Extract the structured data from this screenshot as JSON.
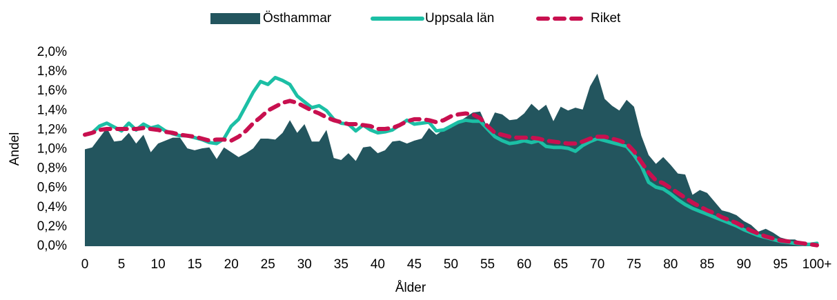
{
  "chart_data": {
    "type": "line",
    "xlabel": "Ålder",
    "ylabel": "Andel",
    "categories": [
      "0",
      null,
      null,
      null,
      null,
      "5",
      null,
      null,
      null,
      null,
      "10",
      null,
      null,
      null,
      null,
      "15",
      null,
      null,
      null,
      null,
      "20",
      null,
      null,
      null,
      null,
      "25",
      null,
      null,
      null,
      null,
      "30",
      null,
      null,
      null,
      null,
      "35",
      null,
      null,
      null,
      null,
      "40",
      null,
      null,
      null,
      null,
      "45",
      null,
      null,
      null,
      null,
      "50",
      null,
      null,
      null,
      null,
      "55",
      null,
      null,
      null,
      null,
      "60",
      null,
      null,
      null,
      null,
      "65",
      null,
      null,
      null,
      null,
      "70",
      null,
      null,
      null,
      null,
      "75",
      null,
      null,
      null,
      null,
      "80",
      null,
      null,
      null,
      null,
      "85",
      null,
      null,
      null,
      null,
      "90",
      null,
      null,
      null,
      null,
      "95",
      null,
      null,
      null,
      null,
      "100+"
    ],
    "ylim": [
      0,
      2.0
    ],
    "yticks": [
      {
        "value": 0,
        "label": "0,0%"
      },
      {
        "value": 0.2,
        "label": "0,2%"
      },
      {
        "value": 0.4,
        "label": "0,4%"
      },
      {
        "value": 0.6,
        "label": "0,6%"
      },
      {
        "value": 0.8,
        "label": "0,8%"
      },
      {
        "value": 1.0,
        "label": "1,0%"
      },
      {
        "value": 1.2,
        "label": "1,2%"
      },
      {
        "value": 1.4,
        "label": "1,4%"
      },
      {
        "value": 1.6,
        "label": "1,6%"
      },
      {
        "value": 1.8,
        "label": "1,8%"
      },
      {
        "value": 2.0,
        "label": "2,0%"
      }
    ],
    "grid": false,
    "legend": "top",
    "series": [
      {
        "name": "Östhammar",
        "kind": "area",
        "color": "#23555e",
        "values": [
          1.0,
          1.02,
          1.12,
          1.22,
          1.08,
          1.09,
          1.17,
          1.06,
          1.15,
          0.97,
          1.06,
          1.09,
          1.12,
          1.12,
          1.01,
          0.99,
          1.01,
          1.02,
          0.9,
          1.02,
          0.97,
          0.92,
          0.96,
          1.01,
          1.11,
          1.11,
          1.1,
          1.17,
          1.3,
          1.17,
          1.26,
          1.08,
          1.08,
          1.2,
          0.91,
          0.89,
          0.96,
          0.88,
          1.02,
          1.03,
          0.96,
          0.99,
          1.08,
          1.09,
          1.06,
          1.09,
          1.11,
          1.22,
          1.15,
          1.2,
          1.22,
          1.28,
          1.33,
          1.38,
          1.39,
          1.22,
          1.38,
          1.36,
          1.3,
          1.31,
          1.37,
          1.47,
          1.4,
          1.46,
          1.29,
          1.44,
          1.4,
          1.43,
          1.41,
          1.65,
          1.78,
          1.52,
          1.45,
          1.4,
          1.51,
          1.44,
          1.14,
          0.94,
          0.85,
          0.92,
          0.84,
          0.75,
          0.74,
          0.53,
          0.58,
          0.55,
          0.46,
          0.37,
          0.35,
          0.32,
          0.26,
          0.22,
          0.15,
          0.18,
          0.14,
          0.09,
          0.07,
          0.07,
          0.03,
          0.02,
          0.03
        ]
      },
      {
        "name": "Uppsala län",
        "kind": "line",
        "dashed": false,
        "color": "#1cbfa5",
        "values": [
          1.15,
          1.17,
          1.24,
          1.27,
          1.23,
          1.19,
          1.27,
          1.2,
          1.26,
          1.22,
          1.24,
          1.19,
          1.16,
          1.14,
          1.14,
          1.12,
          1.1,
          1.07,
          1.06,
          1.11,
          1.24,
          1.31,
          1.45,
          1.59,
          1.7,
          1.67,
          1.74,
          1.71,
          1.67,
          1.55,
          1.49,
          1.43,
          1.45,
          1.4,
          1.31,
          1.27,
          1.26,
          1.19,
          1.25,
          1.2,
          1.17,
          1.18,
          1.2,
          1.25,
          1.3,
          1.26,
          1.27,
          1.28,
          1.19,
          1.2,
          1.24,
          1.28,
          1.3,
          1.29,
          1.29,
          1.21,
          1.13,
          1.09,
          1.06,
          1.07,
          1.09,
          1.07,
          1.09,
          1.03,
          1.02,
          1.02,
          1.01,
          0.98,
          1.04,
          1.08,
          1.11,
          1.09,
          1.07,
          1.05,
          1.03,
          0.94,
          0.83,
          0.66,
          0.61,
          0.59,
          0.54,
          0.48,
          0.43,
          0.39,
          0.36,
          0.33,
          0.3,
          0.27,
          0.24,
          0.21,
          0.17,
          0.14,
          0.11,
          0.09,
          0.07,
          0.05,
          0.04,
          0.03,
          0.02,
          0.02,
          0.03
        ]
      },
      {
        "name": "Riket",
        "kind": "line",
        "dashed": true,
        "color": "#c8104f",
        "values": [
          1.15,
          1.17,
          1.2,
          1.21,
          1.21,
          1.21,
          1.21,
          1.21,
          1.22,
          1.21,
          1.2,
          1.18,
          1.17,
          1.15,
          1.14,
          1.13,
          1.11,
          1.09,
          1.1,
          1.1,
          1.09,
          1.13,
          1.19,
          1.27,
          1.33,
          1.4,
          1.44,
          1.48,
          1.5,
          1.48,
          1.44,
          1.4,
          1.37,
          1.33,
          1.3,
          1.28,
          1.26,
          1.26,
          1.25,
          1.24,
          1.21,
          1.21,
          1.22,
          1.25,
          1.29,
          1.31,
          1.31,
          1.3,
          1.28,
          1.3,
          1.34,
          1.36,
          1.37,
          1.36,
          1.32,
          1.24,
          1.17,
          1.15,
          1.13,
          1.12,
          1.12,
          1.12,
          1.11,
          1.09,
          1.08,
          1.07,
          1.06,
          1.06,
          1.08,
          1.11,
          1.13,
          1.13,
          1.11,
          1.09,
          1.06,
          0.98,
          0.87,
          0.76,
          0.68,
          0.65,
          0.6,
          0.55,
          0.5,
          0.45,
          0.41,
          0.37,
          0.34,
          0.3,
          0.27,
          0.24,
          0.2,
          0.16,
          0.13,
          0.1,
          0.08,
          0.06,
          0.05,
          0.04,
          0.03,
          0.02,
          0.01
        ]
      }
    ]
  }
}
